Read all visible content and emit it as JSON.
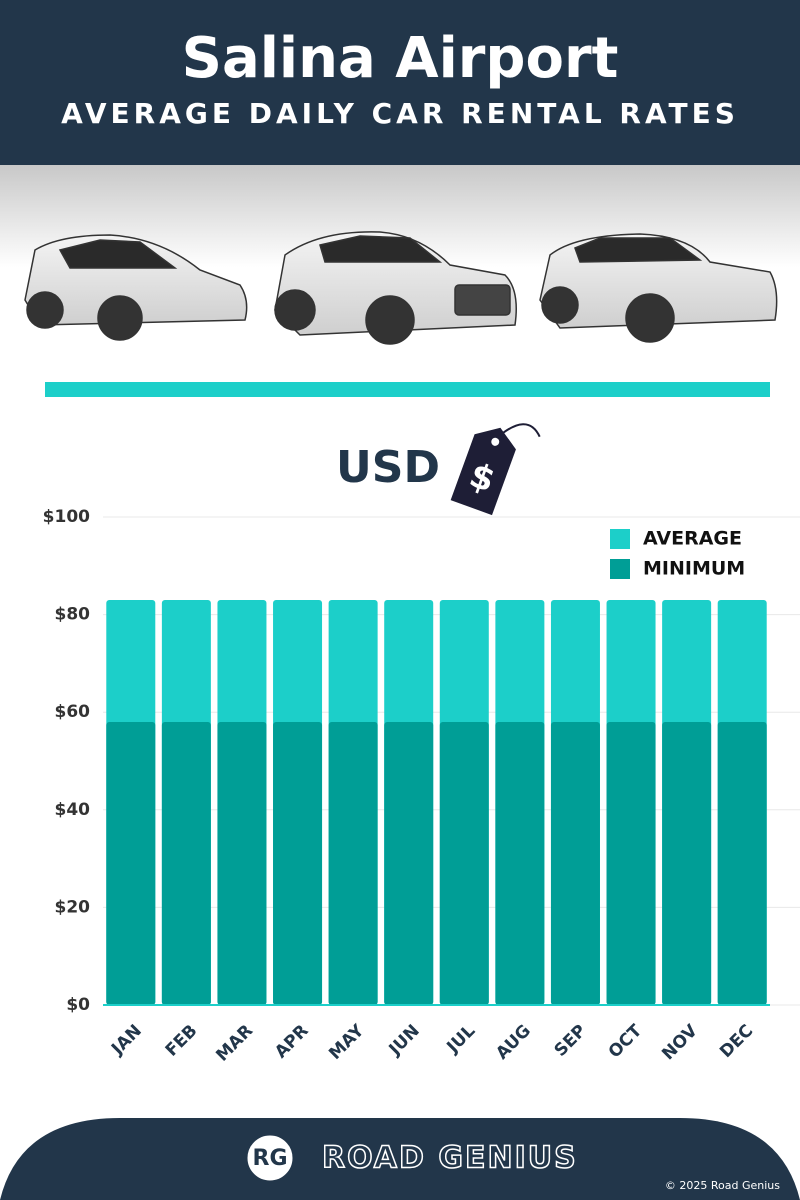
{
  "chart_data": {
    "type": "bar",
    "title": "Salina Airport",
    "subtitle": "AVERAGE DAILY CAR RENTAL RATES",
    "unit_label": "USD",
    "categories": [
      "JAN",
      "FEB",
      "MAR",
      "APR",
      "MAY",
      "JUN",
      "JUL",
      "AUG",
      "SEP",
      "OCT",
      "NOV",
      "DEC"
    ],
    "series": [
      {
        "name": "AVERAGE",
        "color": "#1ccfc9",
        "values": [
          83,
          83,
          83,
          83,
          83,
          83,
          83,
          83,
          83,
          83,
          83,
          83
        ]
      },
      {
        "name": "MINIMUM",
        "color": "#009e96",
        "values": [
          58,
          58,
          58,
          58,
          58,
          58,
          58,
          58,
          58,
          58,
          58,
          58
        ]
      }
    ],
    "ylim": [
      0,
      100
    ],
    "yticks": [
      {
        "value": 0,
        "label": "$0"
      },
      {
        "value": 20,
        "label": "$20"
      },
      {
        "value": 40,
        "label": "$40"
      },
      {
        "value": 60,
        "label": "$60"
      },
      {
        "value": 80,
        "label": "$80"
      },
      {
        "value": 100,
        "label": "$100"
      }
    ],
    "grid": true,
    "legend": "top-right"
  },
  "footer": {
    "logo": "RG",
    "brand": "ROAD GENIUS",
    "copyright": "© 2025 Road Genius"
  }
}
